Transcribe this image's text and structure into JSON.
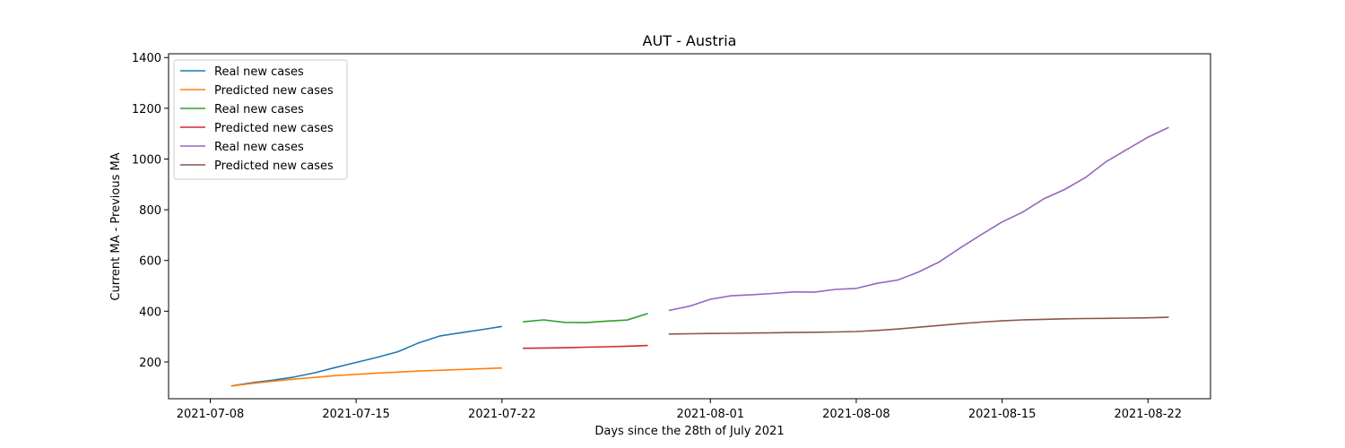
{
  "chart_data": {
    "type": "line",
    "title": "AUT - Austria",
    "xlabel": "Days since the 28th of July 2021",
    "ylabel": "Current MA - Previous MA",
    "ylim": [
      55,
      1415
    ],
    "xlim": [
      "2021-07-06",
      "2021-08-25"
    ],
    "x_ticks": [
      "2021-07-08",
      "2021-07-15",
      "2021-07-22",
      "2021-08-01",
      "2021-08-08",
      "2021-08-15",
      "2021-08-22"
    ],
    "y_ticks": [
      200,
      400,
      600,
      800,
      1000,
      1200,
      1400
    ],
    "grid": false,
    "legend_position": "top-left",
    "series": [
      {
        "name": "Real new cases",
        "color": "#1f77b4",
        "x": [
          "2021-07-09",
          "2021-07-10",
          "2021-07-11",
          "2021-07-12",
          "2021-07-13",
          "2021-07-14",
          "2021-07-15",
          "2021-07-16",
          "2021-07-17",
          "2021-07-18",
          "2021-07-19",
          "2021-07-20",
          "2021-07-21",
          "2021-07-22"
        ],
        "values": [
          105,
          118,
          128,
          140,
          157,
          178,
          198,
          218,
          240,
          275,
          302,
          315,
          327,
          340
        ]
      },
      {
        "name": "Predicted new cases",
        "color": "#ff7f0e",
        "x": [
          "2021-07-09",
          "2021-07-10",
          "2021-07-11",
          "2021-07-12",
          "2021-07-13",
          "2021-07-14",
          "2021-07-15",
          "2021-07-16",
          "2021-07-17",
          "2021-07-18",
          "2021-07-19",
          "2021-07-20",
          "2021-07-21",
          "2021-07-22"
        ],
        "values": [
          105,
          115,
          124,
          132,
          139,
          146,
          151,
          156,
          160,
          164,
          167,
          170,
          173,
          176
        ]
      },
      {
        "name": "Real new cases",
        "color": "#2ca02c",
        "x": [
          "2021-07-23",
          "2021-07-24",
          "2021-07-25",
          "2021-07-26",
          "2021-07-27",
          "2021-07-28",
          "2021-07-29"
        ],
        "values": [
          358,
          366,
          356,
          355,
          361,
          365,
          391
        ]
      },
      {
        "name": "Predicted new cases",
        "color": "#d62728",
        "x": [
          "2021-07-23",
          "2021-07-24",
          "2021-07-25",
          "2021-07-26",
          "2021-07-27",
          "2021-07-28",
          "2021-07-29"
        ],
        "values": [
          254,
          255,
          256,
          258,
          260,
          262,
          265
        ]
      },
      {
        "name": "Real new cases",
        "color": "#9467bd",
        "x": [
          "2021-07-30",
          "2021-07-31",
          "2021-08-01",
          "2021-08-02",
          "2021-08-03",
          "2021-08-04",
          "2021-08-05",
          "2021-08-06",
          "2021-08-07",
          "2021-08-08",
          "2021-08-09",
          "2021-08-10",
          "2021-08-11",
          "2021-08-12",
          "2021-08-13",
          "2021-08-14",
          "2021-08-15",
          "2021-08-16",
          "2021-08-17",
          "2021-08-18",
          "2021-08-19",
          "2021-08-20",
          "2021-08-21",
          "2021-08-22",
          "2021-08-23"
        ],
        "values": [
          403,
          420,
          447,
          461,
          465,
          470,
          476,
          475,
          486,
          490,
          510,
          523,
          555,
          595,
          650,
          702,
          752,
          791,
          843,
          880,
          927,
          990,
          1038,
          1086,
          1125
        ]
      },
      {
        "name": "Predicted new cases",
        "color": "#8c564b",
        "x": [
          "2021-07-30",
          "2021-07-31",
          "2021-08-01",
          "2021-08-02",
          "2021-08-03",
          "2021-08-04",
          "2021-08-05",
          "2021-08-06",
          "2021-08-07",
          "2021-08-08",
          "2021-08-09",
          "2021-08-10",
          "2021-08-11",
          "2021-08-12",
          "2021-08-13",
          "2021-08-14",
          "2021-08-15",
          "2021-08-16",
          "2021-08-17",
          "2021-08-18",
          "2021-08-19",
          "2021-08-20",
          "2021-08-21",
          "2021-08-22",
          "2021-08-23"
        ],
        "values": [
          310,
          311,
          312,
          313,
          314,
          315,
          316,
          317,
          318,
          320,
          324,
          330,
          337,
          344,
          351,
          357,
          362,
          366,
          368,
          370,
          371,
          372,
          373,
          374,
          376
        ]
      }
    ]
  }
}
